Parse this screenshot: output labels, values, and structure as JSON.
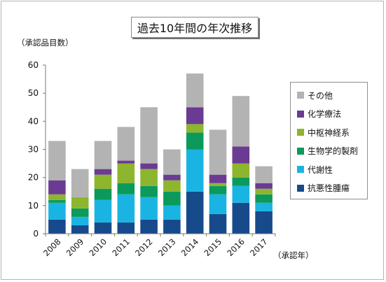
{
  "chart_data": {
    "type": "bar",
    "stacked": true,
    "title": "過去10年間の年次推移",
    "ylabel": "（承認品目数）",
    "xlabel": "（承認年）",
    "categories": [
      "2008",
      "2009",
      "2010",
      "2011",
      "2012",
      "2013",
      "2014",
      "2015",
      "2016",
      "2017"
    ],
    "ylim": [
      0,
      60
    ],
    "yticks": [
      0,
      10,
      20,
      30,
      40,
      50,
      60
    ],
    "grid": false,
    "legend_position": "right",
    "series": [
      {
        "name": "抗悪性腫瘍",
        "color": "#174a8b",
        "values": [
          5,
          3,
          4,
          4,
          5,
          5,
          15,
          7,
          11,
          8
        ]
      },
      {
        "name": "代謝性",
        "color": "#1ab4e3",
        "values": [
          6,
          3,
          8,
          10,
          8,
          5,
          15,
          7,
          6,
          3
        ]
      },
      {
        "name": "生物学的製剤",
        "color": "#0b9a5c",
        "values": [
          1,
          3,
          4,
          4,
          4,
          5,
          6,
          3,
          3,
          3
        ]
      },
      {
        "name": "中枢神経系",
        "color": "#8db52d",
        "values": [
          2,
          4,
          5,
          7,
          6,
          4,
          3,
          1,
          5,
          2
        ]
      },
      {
        "name": "化学療法",
        "color": "#6b3b93",
        "values": [
          5,
          0,
          2,
          1,
          2,
          2,
          6,
          3,
          6,
          2
        ]
      },
      {
        "name": "その他",
        "color": "#b3b3b3",
        "values": [
          14,
          10,
          10,
          12,
          20,
          9,
          12,
          16,
          18,
          6
        ]
      }
    ]
  }
}
